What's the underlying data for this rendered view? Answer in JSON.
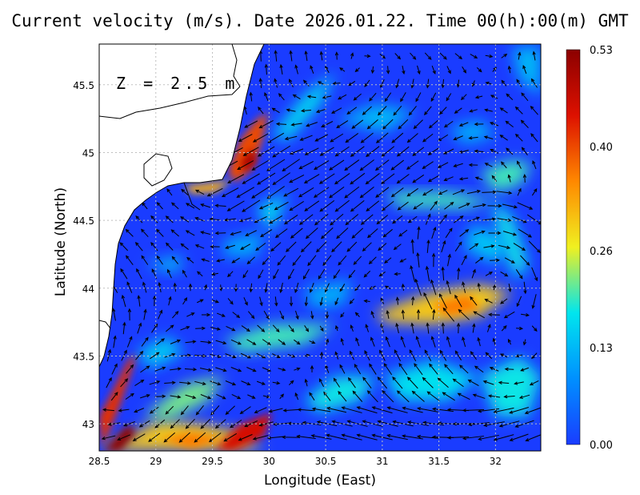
{
  "title": "Current velocity (m/s). Date 2026.01.22. Time 00(h):00(m) GMT",
  "depth_label": "Z = 2.5 m",
  "chart_data": {
    "type": "map",
    "title": "Current velocity (m/s). Date 2026.01.22. Time 00(h):00(m) GMT",
    "xlabel": "Longitude (East)",
    "ylabel": "Latitude (North)",
    "xlim": [
      28.5,
      32.4
    ],
    "ylim": [
      42.8,
      45.8
    ],
    "x_ticks": [
      28.5,
      29,
      29.5,
      30,
      30.5,
      31,
      31.5,
      32
    ],
    "x_tick_labels": [
      "28.5",
      "29",
      "29.5",
      "30",
      "30.5",
      "31",
      "31.5",
      "32"
    ],
    "y_ticks": [
      43,
      43.5,
      44,
      44.5,
      45,
      45.5
    ],
    "y_tick_labels": [
      "43",
      "43.5",
      "44",
      "44.5",
      "45",
      "45.5"
    ],
    "grid": true,
    "colorbar": {
      "min": 0.0,
      "max": 0.53,
      "tick_values": [
        0.0,
        0.13,
        0.26,
        0.4,
        0.53
      ],
      "tick_labels": [
        "0.00",
        "0.13",
        "0.26",
        "0.40",
        "0.53"
      ],
      "colors": [
        "#1a3cff",
        "#0090ff",
        "#00e5ee",
        "#f0f020",
        "#ff8800",
        "#dd1100",
        "#8b0000"
      ]
    },
    "hotspots": [
      {
        "lon": 28.6,
        "lat": 42.9,
        "speed": 0.53
      },
      {
        "lon": 28.65,
        "lat": 43.25,
        "speed": 0.42
      },
      {
        "lon": 29.7,
        "lat": 42.95,
        "speed": 0.45
      },
      {
        "lon": 29.2,
        "lat": 42.9,
        "speed": 0.32
      },
      {
        "lon": 29.85,
        "lat": 45.0,
        "speed": 0.42
      },
      {
        "lon": 31.6,
        "lat": 43.9,
        "speed": 0.3
      },
      {
        "lon": 31.2,
        "lat": 44.7,
        "speed": 0.2
      },
      {
        "lon": 30.1,
        "lat": 43.6,
        "speed": 0.18
      }
    ]
  },
  "colors": {
    "land": "#ffffff",
    "coastline": "#000000",
    "arrow": "#000000",
    "grid": "#bfbfbf"
  }
}
